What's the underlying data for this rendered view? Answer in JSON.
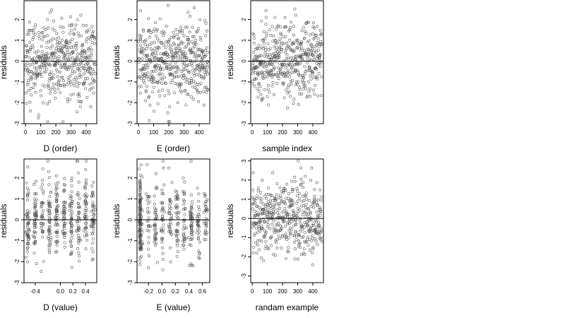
{
  "figure": {
    "background": "#ffffff",
    "point_color": "#4d4d4d",
    "line_color": "#000000"
  },
  "chart_data": [
    {
      "type": "scatter",
      "xlabel": "D (order)",
      "ylabel": "residuals",
      "xlim": [
        -10,
        470
      ],
      "ylim": [
        -3,
        2.9
      ],
      "xticks": [
        0,
        100,
        200,
        300,
        400
      ],
      "xtick_labels": [
        "0",
        "100",
        "200",
        "300",
        "400"
      ],
      "yticks": [
        -3,
        -2,
        -1,
        0,
        1,
        2
      ],
      "ytick_labels": [
        "-3",
        "-2",
        "-1",
        "0",
        "1",
        "2"
      ],
      "hline": 0,
      "grid": false,
      "x_kind": "index",
      "n_points": 460,
      "points": []
    },
    {
      "type": "scatter",
      "xlabel": "E (order)",
      "ylabel": "residuals",
      "xlim": [
        -10,
        470
      ],
      "ylim": [
        -3,
        2.9
      ],
      "xticks": [
        0,
        100,
        200,
        300,
        400
      ],
      "xtick_labels": [
        "0",
        "100",
        "200",
        "300",
        "400"
      ],
      "yticks": [
        -3,
        -2,
        -1,
        0,
        1,
        2
      ],
      "ytick_labels": [
        "-3",
        "-2",
        "-1",
        "0",
        "1",
        "2"
      ],
      "hline": 0,
      "grid": false,
      "x_kind": "index",
      "n_points": 460,
      "points": []
    },
    {
      "type": "scatter",
      "xlabel": "sample index",
      "ylabel": "residuals",
      "xlim": [
        -10,
        470
      ],
      "ylim": [
        -3,
        2.9
      ],
      "xticks": [
        0,
        100,
        200,
        300,
        400
      ],
      "xtick_labels": [
        "0",
        "100",
        "200",
        "300",
        "400"
      ],
      "yticks": [
        -3,
        -2,
        -1,
        0,
        1,
        2
      ],
      "ytick_labels": [
        "-3",
        "-2",
        "-1",
        "0",
        "1",
        "2"
      ],
      "hline": 0,
      "grid": false,
      "x_kind": "index",
      "n_points": 460,
      "points": []
    },
    {
      "type": "scatter",
      "xlabel": "D (value)",
      "ylabel": "residuals",
      "xlim": [
        -0.58,
        0.58
      ],
      "ylim": [
        -3,
        2.9
      ],
      "xticks": [
        -0.4,
        0.0,
        0.2,
        0.4
      ],
      "xtick_labels": [
        "-0.4",
        "0.0",
        "0.2",
        "0.4"
      ],
      "yticks": [
        -3,
        -2,
        -1,
        0,
        1,
        2
      ],
      "ytick_labels": [
        "-3",
        "-2",
        "-1",
        "0",
        "1",
        "2"
      ],
      "hline": 0,
      "grid": false,
      "x_kind": "clustered",
      "n_points": 460,
      "points": []
    },
    {
      "type": "scatter",
      "xlabel": "E (value)",
      "ylabel": "residuals",
      "xlim": [
        -0.37,
        0.71
      ],
      "ylim": [
        -3,
        2.9
      ],
      "xticks": [
        -0.2,
        0.0,
        0.2,
        0.4,
        0.6
      ],
      "xtick_labels": [
        "-0.2",
        "0.0",
        "0.2",
        "0.4",
        "0.6"
      ],
      "yticks": [
        -3,
        -2,
        -1,
        0,
        1,
        2
      ],
      "ytick_labels": [
        "-3",
        "-2",
        "-1",
        "0",
        "1",
        "2"
      ],
      "hline": 0,
      "grid": false,
      "x_kind": "clustered",
      "n_points": 460,
      "points": []
    },
    {
      "type": "scatter",
      "xlabel": "randam example",
      "ylabel": "residuals",
      "xlim": [
        -10,
        470
      ],
      "ylim": [
        -3.35,
        3.1
      ],
      "xticks": [
        0,
        100,
        200,
        300,
        400
      ],
      "xtick_labels": [
        "0",
        "100",
        "200",
        "300",
        "400"
      ],
      "yticks": [
        -3,
        -2,
        -1,
        0,
        1,
        2,
        3
      ],
      "ytick_labels": [
        "-3",
        "-2",
        "-1",
        "0",
        "1",
        "2",
        "3"
      ],
      "hline": 0,
      "grid": false,
      "x_kind": "index",
      "n_points": 460,
      "points": []
    }
  ]
}
